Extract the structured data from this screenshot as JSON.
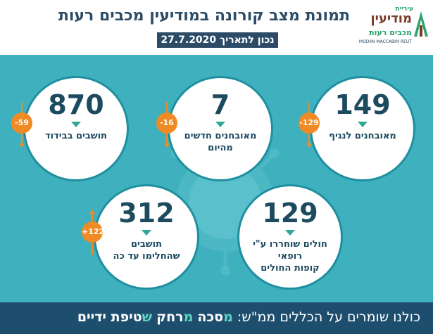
{
  "header": {
    "title": "תמונת מצב קורונה במודיעין מכבים רעות",
    "date": "נכון לתאריך 27.7.2020",
    "logo": {
      "top": "עיריית",
      "name": "מודיעין",
      "sub": "מכבים רעות",
      "en": "MODIIN MACCABIM REUT"
    }
  },
  "stats": {
    "confirmed": {
      "value": "149",
      "change": "-129",
      "label": "מאובחנים לנגיף"
    },
    "new_today": {
      "value": "7",
      "change": "-16",
      "label_line1": "מאובחנים חדשים",
      "label_line2": "מהיום"
    },
    "isolation": {
      "value": "870",
      "change": "-59",
      "label": "תושבים בבידוד"
    },
    "hmo_released": {
      "value": "129",
      "label_line1": "חולים שוחררו ע\"י",
      "label_line2": "רופאי",
      "label_line3": "קופות החולים"
    },
    "recovered": {
      "value": "312",
      "change": "+122",
      "label_line1": "תושבים",
      "label_line2": "שהחלימו עד כה"
    }
  },
  "footer": {
    "prefix": "כולנו שומרים על הכללים ממ\"ש:",
    "w1_first": "מ",
    "w1_rest": "סכה",
    "w2_first": "מ",
    "w2_rest": "רחק",
    "w3_first": "ש",
    "w3_rest": "טיפת ידיים"
  },
  "colors": {
    "background": "#3fb0bd",
    "navy": "#1e4e6e",
    "change_badge": "#f08a24",
    "triangle": "#2fa893"
  }
}
